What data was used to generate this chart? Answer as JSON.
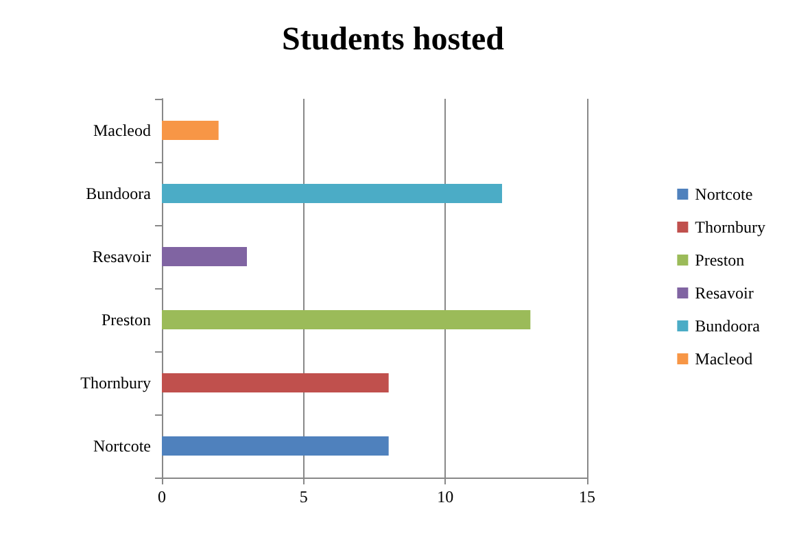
{
  "chart_data": {
    "type": "bar",
    "title": "Students hosted",
    "orientation": "horizontal",
    "stacked": true,
    "categories": [
      "Macleod",
      "Bundoora",
      "Resavoir",
      "Preston",
      "Thornbury",
      "Nortcote"
    ],
    "series": [
      {
        "name": "Nortcote",
        "color": "#4f81bd",
        "values": [
          null,
          null,
          null,
          null,
          null,
          8
        ]
      },
      {
        "name": "Thornbury",
        "color": "#c0504d",
        "values": [
          null,
          null,
          null,
          null,
          8,
          null
        ]
      },
      {
        "name": "Preston",
        "color": "#9bbb59",
        "values": [
          null,
          null,
          null,
          13,
          null,
          null
        ]
      },
      {
        "name": "Resavoir",
        "color": "#8064a2",
        "values": [
          null,
          null,
          3,
          null,
          null,
          null
        ]
      },
      {
        "name": "Bundoora",
        "color": "#4bacc6",
        "values": [
          null,
          12,
          null,
          null,
          null,
          null
        ]
      },
      {
        "name": "Macleod",
        "color": "#f79646",
        "values": [
          2,
          null,
          null,
          null,
          null,
          null
        ]
      }
    ],
    "xlim": [
      0,
      15
    ],
    "xticks": [
      0,
      5,
      10,
      15
    ],
    "grid": "x",
    "legend": "right"
  }
}
